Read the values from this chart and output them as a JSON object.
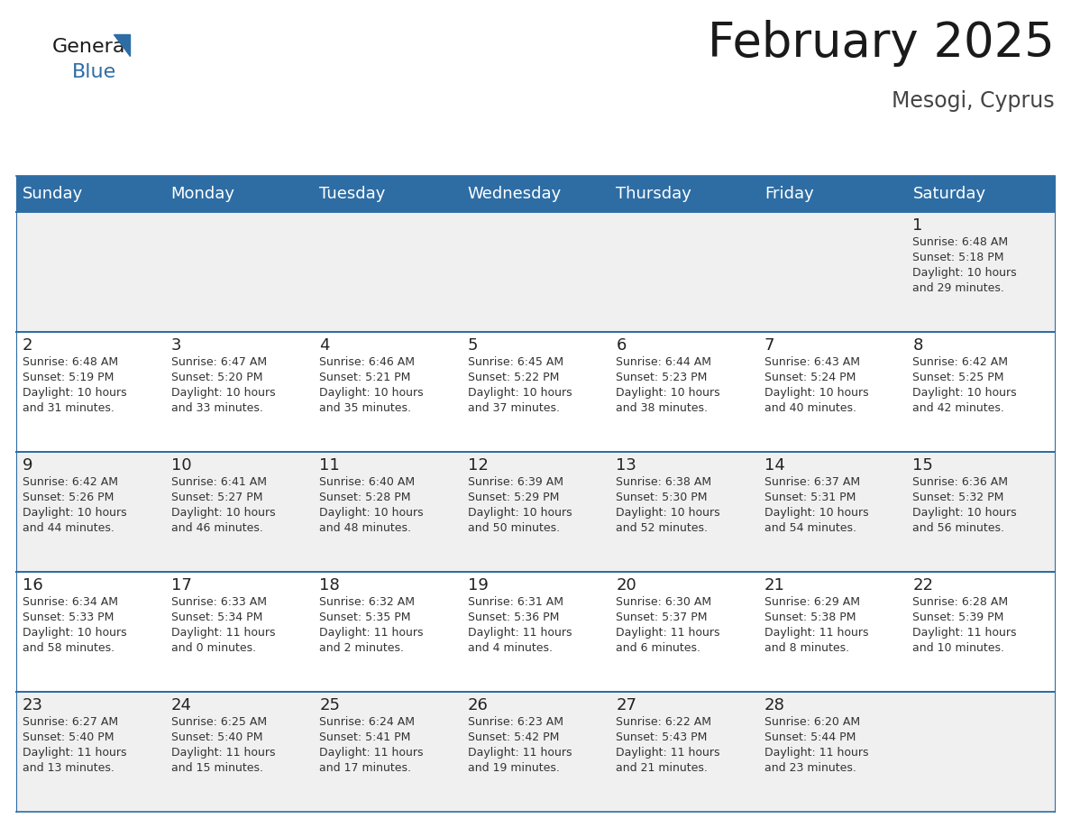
{
  "title": "February 2025",
  "subtitle": "Mesogi, Cyprus",
  "header_bg": "#2e6da4",
  "header_text_color": "#ffffff",
  "cell_bg_odd": "#f0f0f0",
  "cell_bg_even": "#ffffff",
  "border_color": "#2e6da4",
  "days_of_week": [
    "Sunday",
    "Monday",
    "Tuesday",
    "Wednesday",
    "Thursday",
    "Friday",
    "Saturday"
  ],
  "calendar_data": [
    [
      null,
      null,
      null,
      null,
      null,
      null,
      {
        "day": "1",
        "sunrise": "6:48 AM",
        "sunset": "5:18 PM",
        "daylight": "10 hours\nand 29 minutes."
      }
    ],
    [
      {
        "day": "2",
        "sunrise": "6:48 AM",
        "sunset": "5:19 PM",
        "daylight": "10 hours\nand 31 minutes."
      },
      {
        "day": "3",
        "sunrise": "6:47 AM",
        "sunset": "5:20 PM",
        "daylight": "10 hours\nand 33 minutes."
      },
      {
        "day": "4",
        "sunrise": "6:46 AM",
        "sunset": "5:21 PM",
        "daylight": "10 hours\nand 35 minutes."
      },
      {
        "day": "5",
        "sunrise": "6:45 AM",
        "sunset": "5:22 PM",
        "daylight": "10 hours\nand 37 minutes."
      },
      {
        "day": "6",
        "sunrise": "6:44 AM",
        "sunset": "5:23 PM",
        "daylight": "10 hours\nand 38 minutes."
      },
      {
        "day": "7",
        "sunrise": "6:43 AM",
        "sunset": "5:24 PM",
        "daylight": "10 hours\nand 40 minutes."
      },
      {
        "day": "8",
        "sunrise": "6:42 AM",
        "sunset": "5:25 PM",
        "daylight": "10 hours\nand 42 minutes."
      }
    ],
    [
      {
        "day": "9",
        "sunrise": "6:42 AM",
        "sunset": "5:26 PM",
        "daylight": "10 hours\nand 44 minutes."
      },
      {
        "day": "10",
        "sunrise": "6:41 AM",
        "sunset": "5:27 PM",
        "daylight": "10 hours\nand 46 minutes."
      },
      {
        "day": "11",
        "sunrise": "6:40 AM",
        "sunset": "5:28 PM",
        "daylight": "10 hours\nand 48 minutes."
      },
      {
        "day": "12",
        "sunrise": "6:39 AM",
        "sunset": "5:29 PM",
        "daylight": "10 hours\nand 50 minutes."
      },
      {
        "day": "13",
        "sunrise": "6:38 AM",
        "sunset": "5:30 PM",
        "daylight": "10 hours\nand 52 minutes."
      },
      {
        "day": "14",
        "sunrise": "6:37 AM",
        "sunset": "5:31 PM",
        "daylight": "10 hours\nand 54 minutes."
      },
      {
        "day": "15",
        "sunrise": "6:36 AM",
        "sunset": "5:32 PM",
        "daylight": "10 hours\nand 56 minutes."
      }
    ],
    [
      {
        "day": "16",
        "sunrise": "6:34 AM",
        "sunset": "5:33 PM",
        "daylight": "10 hours\nand 58 minutes."
      },
      {
        "day": "17",
        "sunrise": "6:33 AM",
        "sunset": "5:34 PM",
        "daylight": "11 hours\nand 0 minutes."
      },
      {
        "day": "18",
        "sunrise": "6:32 AM",
        "sunset": "5:35 PM",
        "daylight": "11 hours\nand 2 minutes."
      },
      {
        "day": "19",
        "sunrise": "6:31 AM",
        "sunset": "5:36 PM",
        "daylight": "11 hours\nand 4 minutes."
      },
      {
        "day": "20",
        "sunrise": "6:30 AM",
        "sunset": "5:37 PM",
        "daylight": "11 hours\nand 6 minutes."
      },
      {
        "day": "21",
        "sunrise": "6:29 AM",
        "sunset": "5:38 PM",
        "daylight": "11 hours\nand 8 minutes."
      },
      {
        "day": "22",
        "sunrise": "6:28 AM",
        "sunset": "5:39 PM",
        "daylight": "11 hours\nand 10 minutes."
      }
    ],
    [
      {
        "day": "23",
        "sunrise": "6:27 AM",
        "sunset": "5:40 PM",
        "daylight": "11 hours\nand 13 minutes."
      },
      {
        "day": "24",
        "sunrise": "6:25 AM",
        "sunset": "5:40 PM",
        "daylight": "11 hours\nand 15 minutes."
      },
      {
        "day": "25",
        "sunrise": "6:24 AM",
        "sunset": "5:41 PM",
        "daylight": "11 hours\nand 17 minutes."
      },
      {
        "day": "26",
        "sunrise": "6:23 AM",
        "sunset": "5:42 PM",
        "daylight": "11 hours\nand 19 minutes."
      },
      {
        "day": "27",
        "sunrise": "6:22 AM",
        "sunset": "5:43 PM",
        "daylight": "11 hours\nand 21 minutes."
      },
      {
        "day": "28",
        "sunrise": "6:20 AM",
        "sunset": "5:44 PM",
        "daylight": "11 hours\nand 23 minutes."
      },
      null
    ]
  ],
  "title_fontsize": 38,
  "subtitle_fontsize": 17,
  "header_fontsize": 13,
  "day_num_fontsize": 13,
  "cell_text_fontsize": 9,
  "logo_general_color": "#1a1a1a",
  "logo_blue_color": "#2e6da4",
  "logo_triangle_color": "#2e6da4"
}
